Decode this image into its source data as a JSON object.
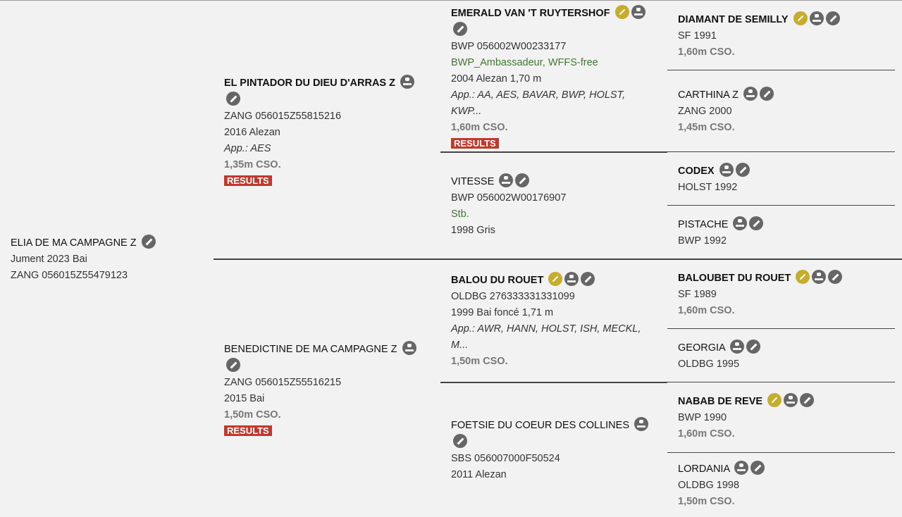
{
  "horses": [
    {
      "name": "ELIA DE MA CAMPAGNE Z",
      "bold": false,
      "icons": [
        "pencil"
      ],
      "lines": [
        {
          "t": "Jument 2023 Bai"
        },
        {
          "t": "ZANG 056015Z55479123"
        }
      ]
    },
    {
      "name": "EL PINTADOR DU DIEU D'ARRAS Z",
      "bold": true,
      "icons": [
        "tree",
        "pencil"
      ],
      "lines": [
        {
          "t": "ZANG 056015Z55815216"
        },
        {
          "t": "2016 Alezan"
        },
        {
          "t": "App.: AES",
          "s": "it"
        },
        {
          "t": "1,35m CSO.",
          "s": "perf"
        }
      ],
      "results": "RESULTS"
    },
    {
      "name": "BENEDICTINE DE MA CAMPAGNE Z",
      "bold": false,
      "icons": [
        "tree",
        "pencil"
      ],
      "lines": [
        {
          "t": "ZANG 056015Z55516215"
        },
        {
          "t": "2015 Bai"
        },
        {
          "t": "1,50m CSO.",
          "s": "perf"
        }
      ],
      "results": "RESULTS"
    },
    {
      "name": "EMERALD VAN 'T RUYTERSHOF",
      "bold": true,
      "icons": [
        "gold",
        "tree",
        "pencil"
      ],
      "lines": [
        {
          "t": "BWP 056002W00233177"
        },
        {
          "t": "BWP_Ambassadeur, WFFS-free",
          "s": "green"
        },
        {
          "t": "2004 Alezan 1,70 m"
        },
        {
          "t": "App.: AA, AES, BAVAR, BWP, HOLST, KWP...",
          "s": "it"
        },
        {
          "t": "1,60m CSO.",
          "s": "perf"
        }
      ],
      "results": "RESULTS"
    },
    {
      "name": "VITESSE",
      "bold": false,
      "icons": [
        "tree",
        "pencil"
      ],
      "lines": [
        {
          "t": "BWP 056002W00176907"
        },
        {
          "t": "Stb.",
          "s": "green"
        },
        {
          "t": "1998 Gris"
        }
      ]
    },
    {
      "name": "BALOU DU ROUET",
      "bold": true,
      "icons": [
        "gold",
        "tree",
        "pencil"
      ],
      "lines": [
        {
          "t": "OLDBG 276333331331099"
        },
        {
          "t": "1999 Bai foncé 1,71 m"
        },
        {
          "t": "App.: AWR, HANN, HOLST, ISH, MECKL, M...",
          "s": "it"
        },
        {
          "t": "1,50m CSO.",
          "s": "perf"
        }
      ]
    },
    {
      "name": "FOETSIE DU COEUR DES COLLINES",
      "bold": false,
      "icons": [
        "tree",
        "pencil"
      ],
      "lines": [
        {
          "t": "SBS 056007000F50524"
        },
        {
          "t": "2011 Alezan"
        }
      ]
    },
    {
      "name": "DIAMANT DE SEMILLY",
      "bold": true,
      "icons": [
        "gold",
        "tree",
        "pencil"
      ],
      "lines": [
        {
          "t": "SF 1991"
        },
        {
          "t": "1,60m CSO.",
          "s": "perf"
        }
      ]
    },
    {
      "name": "CARTHINA Z",
      "bold": false,
      "icons": [
        "tree",
        "pencil"
      ],
      "lines": [
        {
          "t": "ZANG 2000"
        },
        {
          "t": "1,45m CSO.",
          "s": "perf"
        }
      ]
    },
    {
      "name": "CODEX",
      "bold": true,
      "icons": [
        "tree",
        "pencil"
      ],
      "lines": [
        {
          "t": "HOLST 1992"
        }
      ]
    },
    {
      "name": "PISTACHE",
      "bold": false,
      "icons": [
        "tree",
        "pencil"
      ],
      "lines": [
        {
          "t": "BWP 1992"
        }
      ]
    },
    {
      "name": "BALOUBET DU ROUET",
      "bold": true,
      "icons": [
        "gold",
        "tree",
        "pencil"
      ],
      "lines": [
        {
          "t": "SF 1989"
        },
        {
          "t": "1,60m CSO.",
          "s": "perf"
        }
      ]
    },
    {
      "name": "GEORGIA",
      "bold": false,
      "icons": [
        "tree",
        "pencil"
      ],
      "lines": [
        {
          "t": "OLDBG 1995"
        }
      ]
    },
    {
      "name": "NABAB DE REVE",
      "bold": true,
      "icons": [
        "gold",
        "tree",
        "pencil"
      ],
      "lines": [
        {
          "t": "BWP 1990"
        },
        {
          "t": "1,60m CSO.",
          "s": "perf"
        }
      ]
    },
    {
      "name": "LORDANIA",
      "bold": false,
      "icons": [
        "tree",
        "pencil"
      ],
      "lines": [
        {
          "t": "OLDBG 1998"
        },
        {
          "t": "1,50m CSO.",
          "s": "perf"
        }
      ]
    }
  ]
}
